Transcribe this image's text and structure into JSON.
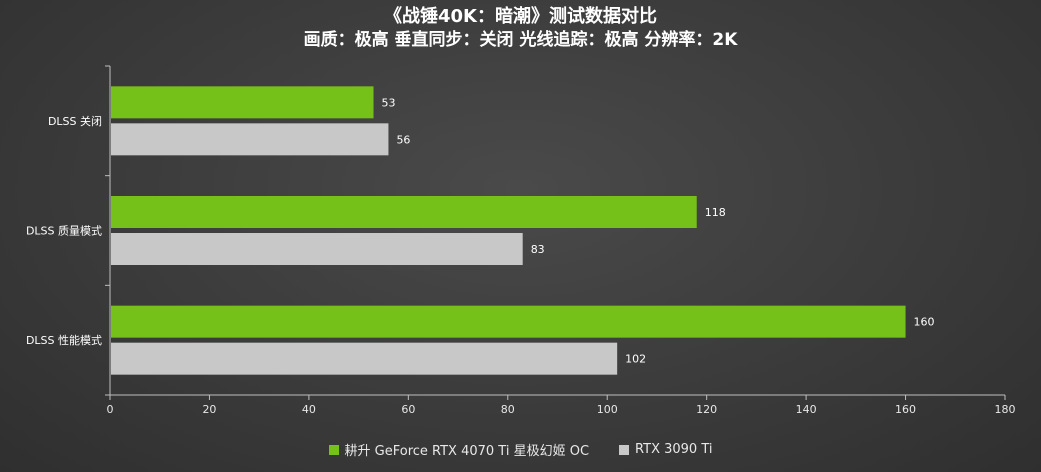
{
  "chart_data": {
    "type": "bar",
    "orientation": "horizontal",
    "title": "《战锤40K：暗潮》测试数据对比",
    "subtitle": "画质：极高 垂直同步：关闭 光线追踪：极高 分辨率：2K",
    "categories": [
      "DLSS 关闭",
      "DLSS 质量模式",
      "DLSS 性能模式"
    ],
    "series": [
      {
        "name": "耕升 GeForce RTX 4070 Ti 星极幻姬 OC",
        "color": "#76c01a",
        "values": [
          53,
          118,
          160
        ]
      },
      {
        "name": "RTX 3090 Ti",
        "color": "#c8c8c8",
        "values": [
          56,
          83,
          102
        ]
      }
    ],
    "xlim": [
      0,
      180
    ],
    "xticks": [
      0,
      20,
      40,
      60,
      80,
      100,
      120,
      140,
      160,
      180
    ],
    "grid": false,
    "legend_position": "bottom"
  }
}
